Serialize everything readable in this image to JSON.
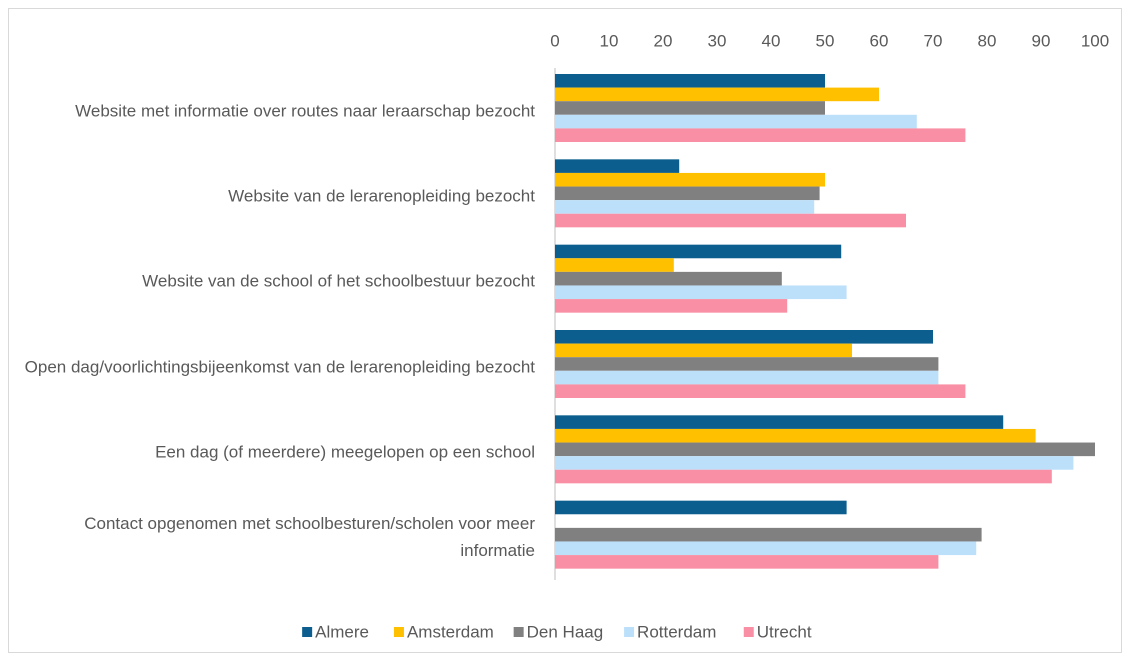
{
  "chart_data": {
    "type": "bar",
    "orientation": "horizontal",
    "categories": [
      "Website met informatie over routes naar leraarschap bezocht",
      "Website van de lerarenopleiding bezocht",
      "Website van de school of het schoolbestuur bezocht",
      "Open dag/voorlichtingsbijeenkomst van de lerarenopleiding bezocht",
      "Een dag (of meerdere) meegelopen op een school",
      "Contact opgenomen met schoolbesturen/scholen voor meer informatie"
    ],
    "series": [
      {
        "name": "Almere",
        "color": "#0b5e8e",
        "values": [
          50,
          23,
          53,
          70,
          83,
          54
        ]
      },
      {
        "name": "Amsterdam",
        "color": "#ffc000",
        "values": [
          60,
          50,
          22,
          55,
          89,
          null
        ]
      },
      {
        "name": "Den Haag",
        "color": "#808080",
        "values": [
          50,
          49,
          42,
          71,
          100,
          79
        ]
      },
      {
        "name": "Rotterdam",
        "color": "#bde0fa",
        "values": [
          67,
          48,
          54,
          71,
          96,
          78
        ]
      },
      {
        "name": "Utrecht",
        "color": "#f98fa4",
        "values": [
          76,
          65,
          43,
          76,
          92,
          71
        ]
      }
    ],
    "xlim": [
      0,
      100
    ],
    "xticks": [
      0,
      10,
      20,
      30,
      40,
      50,
      60,
      70,
      80,
      90,
      100
    ],
    "grid": false,
    "legend": "bottom"
  }
}
